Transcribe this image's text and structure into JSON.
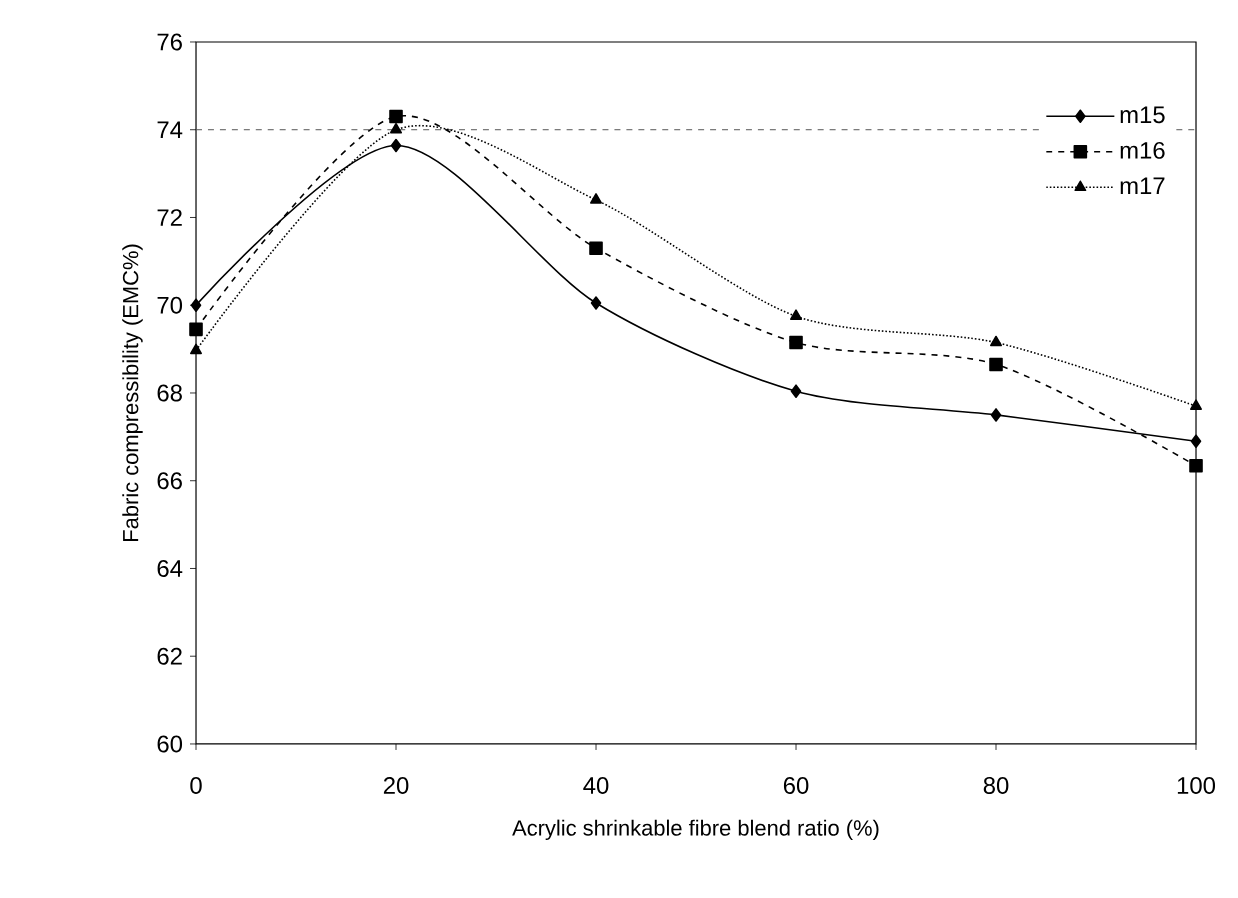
{
  "chart_data": {
    "type": "line",
    "xlabel": "Acrylic shrinkable fibre blend ratio (%)",
    "ylabel": "Fabric compressibility (EMC%)",
    "x": [
      0,
      20,
      40,
      60,
      80,
      100
    ],
    "series": [
      {
        "name": "m15",
        "color": "#000000",
        "marker": "diamond",
        "line_style": "solid",
        "values": [
          70.0,
          73.64,
          70.05,
          68.04,
          67.5,
          66.9
        ]
      },
      {
        "name": "m16",
        "color": "#000000",
        "marker": "square",
        "line_style": "dashed",
        "values": [
          69.45,
          74.3,
          71.3,
          69.15,
          68.65,
          66.34
        ]
      },
      {
        "name": "m17",
        "color": "#000000",
        "marker": "triangle",
        "line_style": "dotted",
        "values": [
          68.97,
          74.0,
          72.4,
          69.75,
          69.15,
          67.7
        ]
      }
    ],
    "xlim": [
      0,
      100
    ],
    "xticks": [
      0,
      20,
      40,
      60,
      80,
      100
    ],
    "ylim": [
      60,
      76
    ],
    "yticks": [
      60,
      62,
      64,
      66,
      68,
      70,
      72,
      74,
      76
    ],
    "ref_lines": [
      {
        "axis": "y",
        "value": 74,
        "color": "#555555",
        "line_style": "dashed"
      }
    ],
    "legend": "top right"
  }
}
